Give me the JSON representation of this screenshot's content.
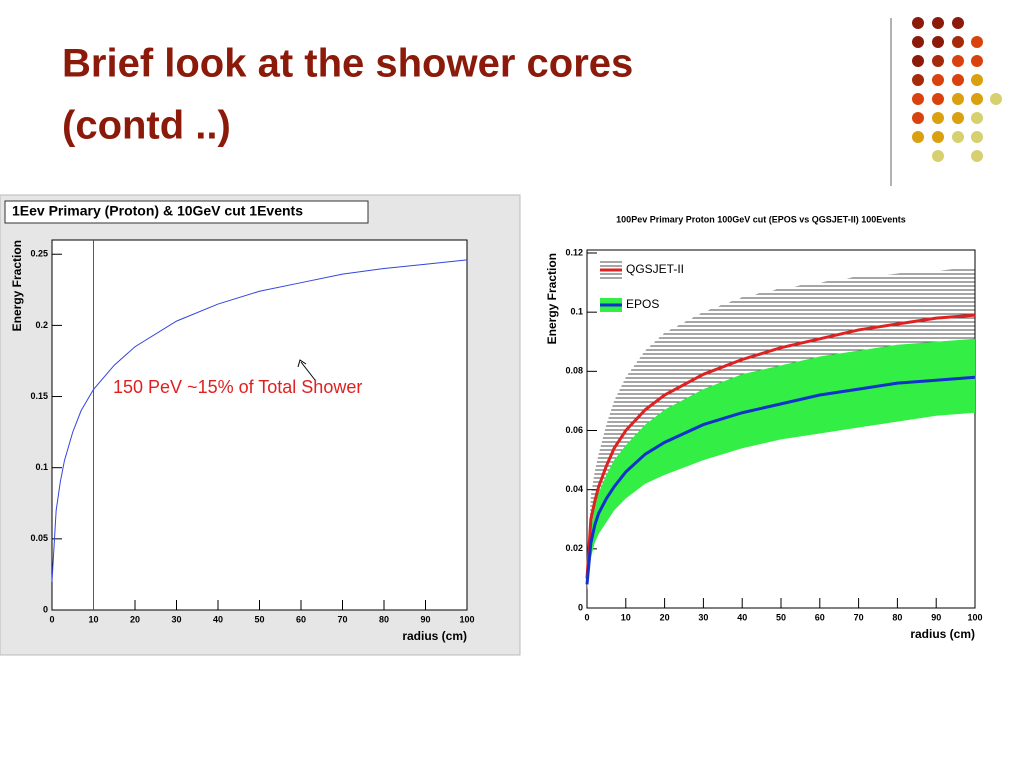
{
  "slide": {
    "title": [
      "Brief look at  the shower cores",
      "(contd ..)"
    ]
  },
  "chart_data": [
    {
      "type": "line",
      "title": "1Eev Primary (Proton) & 10GeV cut 1Events",
      "x_label": "radius (cm)",
      "y_label": "Energy Fraction",
      "xlim": [
        0,
        100
      ],
      "ylim": [
        0,
        0.26
      ],
      "xticks": [
        0,
        10,
        20,
        30,
        40,
        50,
        60,
        70,
        80,
        90,
        100
      ],
      "yticks": [
        0,
        0.05,
        0.1,
        0.15,
        0.2,
        0.25
      ],
      "x": [
        0,
        1,
        2,
        3,
        5,
        7,
        10,
        15,
        20,
        30,
        40,
        50,
        60,
        70,
        80,
        90,
        100
      ],
      "series": [
        {
          "name": null,
          "color": "#3344dd",
          "values": [
            0.02,
            0.07,
            0.09,
            0.105,
            0.125,
            0.14,
            0.155,
            0.172,
            0.185,
            0.203,
            0.215,
            0.224,
            0.23,
            0.236,
            0.24,
            0.243,
            0.246
          ]
        }
      ],
      "annotation": {
        "text": "150 PeV  ~15% of Total Shower",
        "x_line": 10,
        "color": "#e02020"
      }
    },
    {
      "type": "line",
      "title": "100Pev Primary Proton 100GeV cut (EPOS vs QGSJET-II) 100Events",
      "x_label": "radius (cm)",
      "y_label": "Energy Fraction",
      "xlim": [
        0,
        100
      ],
      "ylim": [
        0,
        0.12
      ],
      "xticks": [
        0,
        10,
        20,
        30,
        40,
        50,
        60,
        70,
        80,
        90,
        100
      ],
      "yticks": [
        0,
        0.02,
        0.04,
        0.06,
        0.08,
        0.1,
        0.12
      ],
      "x": [
        0,
        1,
        2,
        3,
        5,
        7,
        10,
        15,
        20,
        30,
        40,
        50,
        60,
        70,
        80,
        90,
        100
      ],
      "series": [
        {
          "name": "QGSJET-II",
          "color": "#dd2222",
          "band_style": "hatch",
          "band_color": "#000000",
          "values": [
            0.01,
            0.03,
            0.036,
            0.041,
            0.048,
            0.054,
            0.06,
            0.067,
            0.072,
            0.079,
            0.084,
            0.088,
            0.091,
            0.094,
            0.096,
            0.098,
            0.099
          ],
          "band_upper": [
            0.012,
            0.038,
            0.046,
            0.052,
            0.062,
            0.07,
            0.078,
            0.087,
            0.093,
            0.1,
            0.105,
            0.108,
            0.11,
            0.112,
            0.113,
            0.114,
            0.115
          ],
          "band_lower": [
            0.008,
            0.022,
            0.027,
            0.031,
            0.036,
            0.04,
            0.045,
            0.05,
            0.054,
            0.06,
            0.064,
            0.068,
            0.071,
            0.075,
            0.078,
            0.081,
            0.083
          ]
        },
        {
          "name": "EPOS",
          "color": "#1133cc",
          "band_style": "solid",
          "band_color": "#33ee44",
          "values": [
            0.008,
            0.022,
            0.028,
            0.032,
            0.037,
            0.041,
            0.046,
            0.052,
            0.056,
            0.062,
            0.066,
            0.069,
            0.072,
            0.074,
            0.076,
            0.077,
            0.078
          ],
          "band_upper": [
            0.01,
            0.027,
            0.034,
            0.039,
            0.045,
            0.05,
            0.055,
            0.062,
            0.067,
            0.074,
            0.079,
            0.082,
            0.085,
            0.087,
            0.089,
            0.09,
            0.091
          ],
          "band_lower": [
            0.006,
            0.017,
            0.022,
            0.025,
            0.029,
            0.033,
            0.037,
            0.042,
            0.045,
            0.05,
            0.054,
            0.057,
            0.059,
            0.061,
            0.063,
            0.065,
            0.066
          ]
        }
      ]
    }
  ]
}
